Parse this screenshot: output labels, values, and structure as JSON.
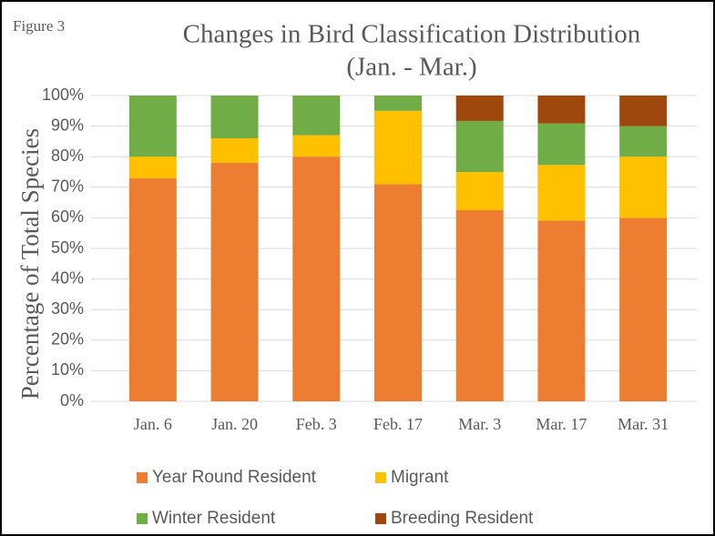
{
  "chart_data": {
    "type": "stacked_bar",
    "figure_label": "Figure 3",
    "title": "Changes in Bird Classification Distribution",
    "subtitle": "(Jan. - Mar.)",
    "ylabel": "Percentage of Total Species",
    "categories": [
      "Jan. 6",
      "Jan. 20",
      "Feb. 3",
      "Feb. 17",
      "Mar. 3",
      "Mar. 17",
      "Mar. 31"
    ],
    "series": [
      {
        "name": "Year Round Resident",
        "color": "#ed7d31",
        "values": [
          73,
          78,
          80,
          71,
          62.5,
          59.1,
          60
        ]
      },
      {
        "name": "Migrant",
        "color": "#ffc000",
        "values": [
          7,
          8,
          7,
          24,
          12.5,
          18.2,
          20
        ]
      },
      {
        "name": "Winter Resident",
        "color": "#70ad47",
        "values": [
          20,
          14,
          13,
          5,
          16.7,
          13.6,
          10
        ]
      },
      {
        "name": "Breeding Resident",
        "color": "#9e480e",
        "values": [
          0,
          0,
          0,
          0,
          8.3,
          9.1,
          10
        ]
      }
    ],
    "ylim": [
      0,
      100
    ],
    "yticks": [
      {
        "value": 0,
        "label": "0%"
      },
      {
        "value": 10,
        "label": "10%"
      },
      {
        "value": 20,
        "label": "20%"
      },
      {
        "value": 30,
        "label": "30%"
      },
      {
        "value": 40,
        "label": "40%"
      },
      {
        "value": 50,
        "label": "50%"
      },
      {
        "value": 60,
        "label": "60%"
      },
      {
        "value": 70,
        "label": "70%"
      },
      {
        "value": 80,
        "label": "80%"
      },
      {
        "value": 90,
        "label": "90%"
      },
      {
        "value": 100,
        "label": "100%"
      }
    ],
    "grid": true
  }
}
